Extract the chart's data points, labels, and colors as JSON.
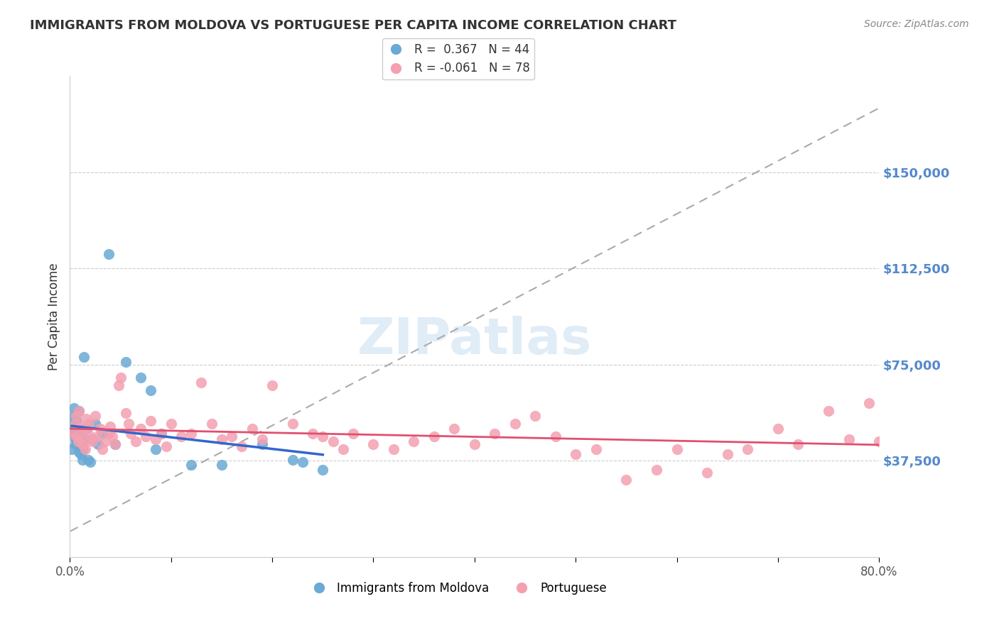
{
  "title": "IMMIGRANTS FROM MOLDOVA VS PORTUGUESE PER CAPITA INCOME CORRELATION CHART",
  "source": "Source: ZipAtlas.com",
  "ylabel": "Per Capita Income",
  "xlabel": "",
  "xlim": [
    0.0,
    0.8
  ],
  "ylim": [
    0,
    187500
  ],
  "yticks": [
    37500,
    75000,
    112500,
    150000
  ],
  "ytick_labels": [
    "$37,500",
    "$75,000",
    "$112,500",
    "$150,000"
  ],
  "xticks": [
    0.0,
    0.1,
    0.2,
    0.3,
    0.4,
    0.5,
    0.6,
    0.7,
    0.8
  ],
  "xtick_labels": [
    "0.0%",
    "",
    "",
    "",
    "",
    "",
    "",
    "",
    "80.0%"
  ],
  "blue_R": 0.367,
  "blue_N": 44,
  "pink_R": -0.061,
  "pink_N": 78,
  "blue_color": "#6aaad4",
  "pink_color": "#f4a0b0",
  "blue_line_color": "#3366cc",
  "pink_line_color": "#e05070",
  "legend_label_blue": "Immigrants from Moldova",
  "legend_label_pink": "Portuguese",
  "watermark": "ZIPatlas",
  "background_color": "#ffffff",
  "grid_color": "#cccccc",
  "ytick_color": "#5588cc",
  "title_color": "#333333",
  "blue_x": [
    0.002,
    0.003,
    0.003,
    0.004,
    0.004,
    0.005,
    0.005,
    0.005,
    0.006,
    0.006,
    0.007,
    0.007,
    0.008,
    0.008,
    0.009,
    0.009,
    0.01,
    0.01,
    0.011,
    0.011,
    0.012,
    0.013,
    0.014,
    0.015,
    0.016,
    0.018,
    0.02,
    0.022,
    0.025,
    0.028,
    0.032,
    0.038,
    0.045,
    0.055,
    0.07,
    0.08,
    0.085,
    0.09,
    0.12,
    0.15,
    0.19,
    0.22,
    0.23,
    0.25
  ],
  "blue_y": [
    42000,
    48000,
    52000,
    55000,
    58000,
    46000,
    50000,
    44000,
    47000,
    53000,
    45000,
    51000,
    43000,
    49000,
    57000,
    41000,
    46000,
    44000,
    40000,
    45000,
    38000,
    42000,
    78000,
    46000,
    50000,
    38000,
    37000,
    46000,
    52000,
    44000,
    48000,
    118000,
    44000,
    76000,
    70000,
    65000,
    42000,
    48000,
    36000,
    36000,
    44000,
    38000,
    37000,
    34000
  ],
  "pink_x": [
    0.003,
    0.005,
    0.006,
    0.007,
    0.008,
    0.009,
    0.01,
    0.011,
    0.012,
    0.013,
    0.015,
    0.016,
    0.018,
    0.019,
    0.02,
    0.022,
    0.025,
    0.027,
    0.03,
    0.032,
    0.035,
    0.038,
    0.04,
    0.042,
    0.045,
    0.048,
    0.05,
    0.055,
    0.058,
    0.06,
    0.065,
    0.07,
    0.075,
    0.08,
    0.085,
    0.09,
    0.095,
    0.1,
    0.11,
    0.12,
    0.13,
    0.14,
    0.15,
    0.16,
    0.17,
    0.18,
    0.19,
    0.2,
    0.22,
    0.24,
    0.25,
    0.26,
    0.27,
    0.28,
    0.3,
    0.32,
    0.34,
    0.36,
    0.38,
    0.4,
    0.42,
    0.44,
    0.46,
    0.48,
    0.5,
    0.52,
    0.55,
    0.58,
    0.6,
    0.63,
    0.65,
    0.67,
    0.7,
    0.72,
    0.75,
    0.77,
    0.79,
    0.8
  ],
  "pink_y": [
    48000,
    52000,
    55000,
    47000,
    45000,
    57000,
    51000,
    46000,
    44000,
    50000,
    42000,
    54000,
    48000,
    52000,
    46000,
    45000,
    55000,
    47000,
    50000,
    42000,
    45000,
    48000,
    51000,
    47000,
    44000,
    67000,
    70000,
    56000,
    52000,
    48000,
    45000,
    50000,
    47000,
    53000,
    46000,
    48000,
    43000,
    52000,
    47000,
    48000,
    68000,
    52000,
    46000,
    47000,
    43000,
    50000,
    46000,
    67000,
    52000,
    48000,
    47000,
    45000,
    42000,
    48000,
    44000,
    42000,
    45000,
    47000,
    50000,
    44000,
    48000,
    52000,
    55000,
    47000,
    40000,
    42000,
    30000,
    34000,
    42000,
    33000,
    40000,
    42000,
    50000,
    44000,
    57000,
    46000,
    60000,
    45000
  ]
}
